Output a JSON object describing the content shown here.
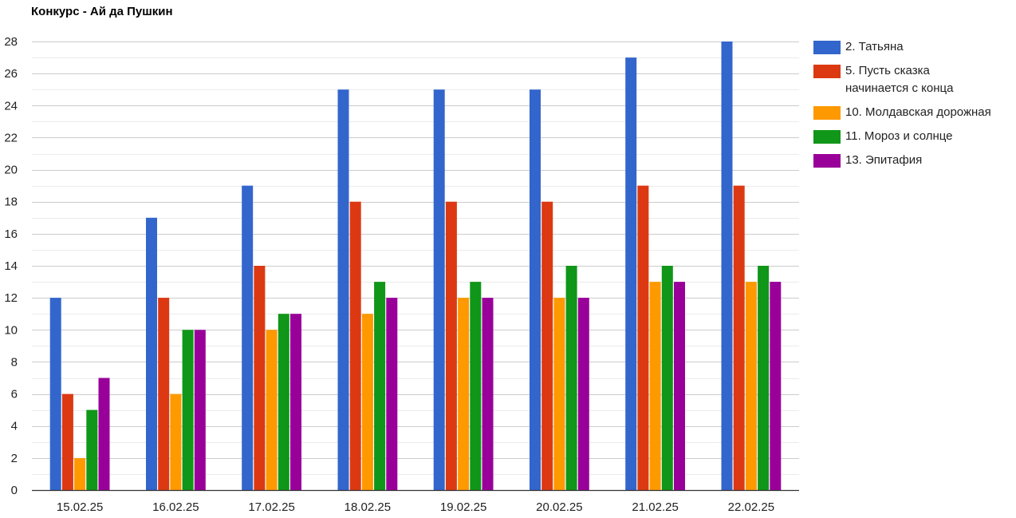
{
  "chart_data": {
    "type": "bar",
    "title": "Конкурс - Ай да Пушкин",
    "categories": [
      "15.02.25",
      "16.02.25",
      "17.02.25",
      "18.02.25",
      "19.02.25",
      "20.02.25",
      "21.02.25",
      "22.02.25"
    ],
    "series": [
      {
        "name": "2. Татьяна",
        "color": "#3366cc",
        "values": [
          12,
          17,
          19,
          25,
          25,
          25,
          27,
          28
        ]
      },
      {
        "name": "5. Пусть сказка начинается с конца",
        "color": "#dc3912",
        "values": [
          6,
          12,
          14,
          18,
          18,
          18,
          19,
          19
        ]
      },
      {
        "name": "10. Молдавская дорожная",
        "color": "#ff9900",
        "values": [
          2,
          6,
          10,
          11,
          12,
          12,
          13,
          13
        ]
      },
      {
        "name": "11. Мороз и солнце",
        "color": "#109618",
        "values": [
          5,
          10,
          11,
          13,
          13,
          14,
          14,
          14
        ]
      },
      {
        "name": "13. Эпитафия",
        "color": "#990099",
        "values": [
          7,
          10,
          11,
          12,
          12,
          12,
          13,
          13
        ]
      }
    ],
    "ylim": [
      0,
      28
    ],
    "yticks": [
      "0",
      "2",
      "4",
      "6",
      "8",
      "10",
      "12",
      "14",
      "16",
      "18",
      "20",
      "22",
      "24",
      "26",
      "28"
    ],
    "grid": true,
    "legend_position": "right"
  }
}
